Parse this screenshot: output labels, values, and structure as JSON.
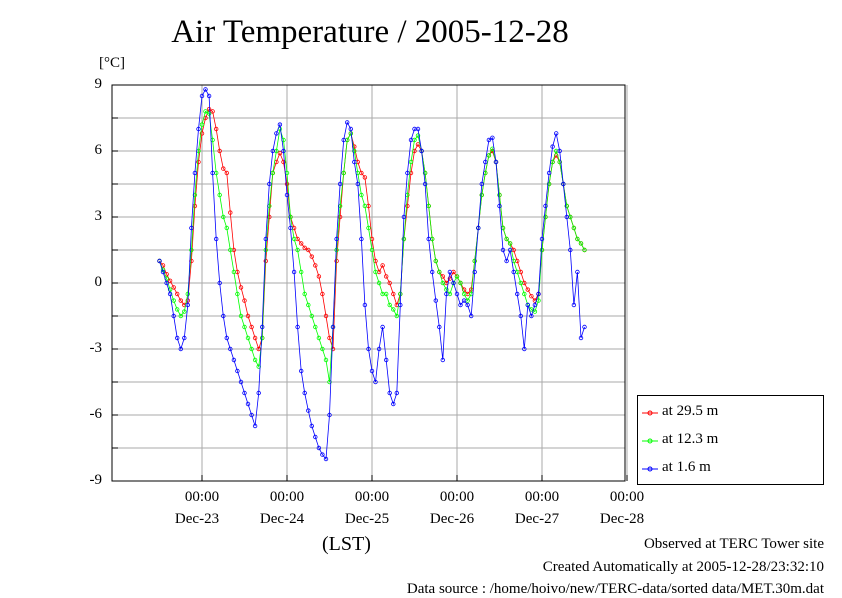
{
  "chart_data": {
    "type": "line",
    "title": "Air Temperature / 2005-12-28",
    "ylabel": "[°C]",
    "xlabel": "(LST)",
    "ylim": [
      -9,
      9
    ],
    "y_ticks": [
      "9",
      "6",
      "3",
      "0",
      "-3",
      "-6",
      "-9"
    ],
    "x_ticks": [
      {
        "time": "00:00",
        "date": "Dec-23"
      },
      {
        "time": "00:00",
        "date": "Dec-24"
      },
      {
        "time": "00:00",
        "date": "Dec-25"
      },
      {
        "time": "00:00",
        "date": "Dec-26"
      },
      {
        "time": "00:00",
        "date": "Dec-27"
      },
      {
        "time": "00:00",
        "date": "Dec-28"
      }
    ],
    "grid": true,
    "legend_position": "bottom-right",
    "hours_per_point": 1,
    "start": "2005-12-22 12:00",
    "series": [
      {
        "name": "at 29.5 m",
        "color": "#ff0000",
        "values": [
          1.0,
          0.8,
          0.4,
          0.1,
          -0.2,
          -0.5,
          -0.8,
          -1.0,
          -0.8,
          1.0,
          3.5,
          5.5,
          6.8,
          7.5,
          7.9,
          7.8,
          7.0,
          6.0,
          5.2,
          5.0,
          3.2,
          1.5,
          0.5,
          -0.2,
          -0.8,
          -1.5,
          -2.0,
          -2.5,
          -3.0,
          -2.5,
          1.0,
          3.0,
          5.0,
          5.5,
          5.9,
          5.5,
          4.5,
          3.0,
          2.5,
          2.0,
          1.8,
          1.6,
          1.5,
          1.2,
          0.8,
          0.3,
          -0.5,
          -1.5,
          -2.5,
          -3.0,
          1.0,
          3.0,
          5.0,
          6.5,
          6.8,
          6.2,
          5.5,
          5.0,
          4.8,
          3.5,
          2.0,
          1.0,
          0.5,
          0.8,
          0.3,
          0.0,
          -0.5,
          -1.0,
          -0.5,
          2.0,
          3.5,
          5.0,
          6.0,
          6.3,
          6.0,
          5.0,
          3.5,
          2.0,
          1.0,
          0.5,
          0.3,
          0.0,
          0.2,
          0.5,
          0.3,
          0.0,
          -0.3,
          -0.5,
          -0.3,
          1.0,
          2.5,
          4.0,
          5.0,
          5.8,
          6.0,
          5.5,
          4.0,
          2.5,
          2.0,
          1.8,
          1.5,
          1.0,
          0.5,
          0.0,
          -0.3,
          -0.6,
          -0.8,
          -0.5,
          1.5,
          3.0,
          4.5,
          5.5,
          5.8,
          5.5,
          4.5,
          3.5,
          3.0,
          2.5,
          2.0,
          1.8,
          1.5
        ]
      },
      {
        "name": "at 12.3 m",
        "color": "#00ff00",
        "values": [
          1.0,
          0.6,
          0.2,
          -0.3,
          -0.8,
          -1.2,
          -1.5,
          -1.3,
          -0.5,
          1.5,
          4.0,
          6.0,
          7.2,
          7.8,
          7.7,
          6.5,
          5.0,
          4.0,
          3.0,
          2.5,
          1.5,
          0.5,
          -0.5,
          -1.5,
          -2.0,
          -2.5,
          -3.0,
          -3.5,
          -3.8,
          -2.5,
          1.5,
          3.5,
          5.0,
          6.0,
          7.0,
          6.5,
          5.0,
          3.0,
          2.0,
          1.5,
          0.5,
          -0.5,
          -1.0,
          -1.5,
          -2.0,
          -2.5,
          -3.0,
          -3.5,
          -4.5,
          -2.0,
          1.5,
          3.5,
          5.0,
          6.5,
          6.8,
          6.0,
          5.0,
          4.0,
          3.5,
          2.5,
          1.5,
          0.5,
          0.0,
          -0.5,
          -0.5,
          -1.0,
          -1.2,
          -1.5,
          -0.5,
          2.0,
          4.0,
          5.5,
          6.5,
          6.7,
          6.0,
          5.0,
          3.5,
          2.0,
          1.0,
          0.5,
          0.0,
          -0.3,
          -0.5,
          0.0,
          0.3,
          0.0,
          -0.5,
          -0.8,
          -0.5,
          1.0,
          2.5,
          4.0,
          5.0,
          5.8,
          6.1,
          5.5,
          4.0,
          2.5,
          2.0,
          1.8,
          1.0,
          0.5,
          0.0,
          -0.5,
          -1.0,
          -1.2,
          -1.3,
          -0.8,
          1.5,
          3.0,
          4.5,
          5.5,
          6.0,
          5.5,
          4.5,
          3.5,
          3.0,
          2.5,
          2.0,
          1.8,
          1.5
        ]
      },
      {
        "name": "at 1.6 m",
        "color": "#0000ff",
        "values": [
          1.0,
          0.5,
          0.0,
          -0.5,
          -1.5,
          -2.5,
          -3.0,
          -2.5,
          -1.0,
          2.5,
          5.0,
          7.0,
          8.5,
          8.8,
          8.5,
          5.0,
          2.0,
          0.0,
          -1.5,
          -2.5,
          -3.0,
          -3.5,
          -4.0,
          -4.5,
          -5.0,
          -5.5,
          -6.0,
          -6.5,
          -5.0,
          -2.0,
          2.0,
          4.5,
          6.0,
          6.8,
          7.2,
          6.0,
          4.0,
          2.5,
          0.5,
          -2.0,
          -4.0,
          -5.0,
          -5.8,
          -6.5,
          -7.0,
          -7.5,
          -7.8,
          -8.0,
          -6.0,
          -2.0,
          2.0,
          4.5,
          6.5,
          7.3,
          7.0,
          5.5,
          4.5,
          2.0,
          -1.0,
          -3.0,
          -4.0,
          -4.5,
          -3.0,
          -2.0,
          -3.5,
          -5.0,
          -5.5,
          -5.0,
          -1.0,
          3.0,
          5.0,
          6.5,
          7.0,
          7.0,
          6.0,
          4.5,
          2.0,
          0.5,
          -0.8,
          -2.0,
          -3.5,
          -0.5,
          0.5,
          0.0,
          -0.5,
          -1.0,
          -0.8,
          -1.0,
          -1.5,
          0.5,
          2.5,
          4.5,
          5.5,
          6.5,
          6.6,
          5.5,
          3.5,
          1.5,
          1.0,
          1.5,
          0.5,
          -0.5,
          -1.5,
          -3.0,
          -1.0,
          -1.5,
          -1.0,
          -0.5,
          2.0,
          3.5,
          5.0,
          6.2,
          6.8,
          6.0,
          4.5,
          3.0,
          1.5,
          -1.0,
          0.5,
          -2.5,
          -2.0
        ]
      }
    ]
  },
  "footer": {
    "line1": "Observed at TERC Tower site",
    "line2": "Created Automatically at 2005-12-28/23:32:10",
    "line3": "Data source : /home/hoivo/new/TERC-data/sorted  data/MET.30m.dat"
  }
}
